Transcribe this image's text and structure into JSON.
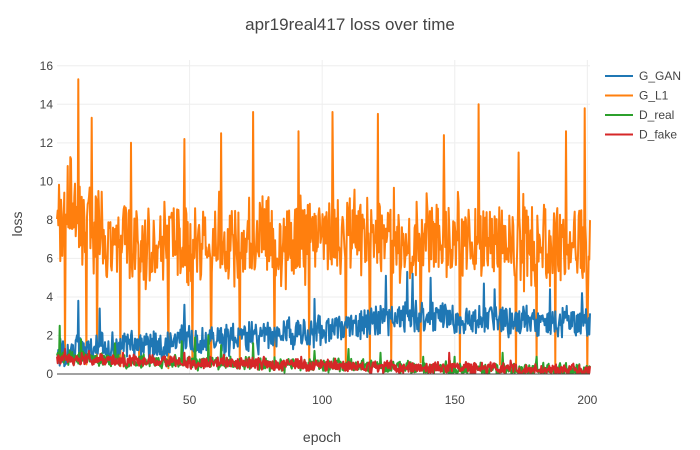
{
  "chart_data": {
    "type": "line",
    "title": "apr19real417 loss over time",
    "xlabel": "epoch",
    "ylabel": "loss",
    "xlim": [
      0,
      201
    ],
    "ylim": [
      0,
      16.3
    ],
    "xticks": [
      50,
      100,
      150,
      200
    ],
    "yticks": [
      0,
      2,
      4,
      6,
      8,
      10,
      12,
      14,
      16
    ],
    "grid": true,
    "legend_position": "top-right",
    "x": {
      "start": 0,
      "end": 201,
      "points": 800
    },
    "series": [
      {
        "name": "G_GAN",
        "color": "#1f77b4",
        "anchors": [
          [
            0,
            1.0
          ],
          [
            10,
            1.3
          ],
          [
            20,
            1.4
          ],
          [
            40,
            1.6
          ],
          [
            60,
            1.8
          ],
          [
            80,
            2.0
          ],
          [
            100,
            2.3
          ],
          [
            120,
            2.7
          ],
          [
            130,
            3.0
          ],
          [
            150,
            2.8
          ],
          [
            170,
            2.8
          ],
          [
            190,
            2.7
          ],
          [
            201,
            2.6
          ]
        ],
        "spread": 0.8,
        "spikes": [
          [
            8,
            3.8
          ],
          [
            16,
            3.4
          ],
          [
            48,
            3.6
          ],
          [
            97,
            3.9
          ],
          [
            124,
            5.1
          ],
          [
            132,
            5.3
          ],
          [
            134,
            5.2
          ],
          [
            141,
            5.0
          ],
          [
            161,
            4.7
          ],
          [
            165,
            4.4
          ],
          [
            186,
            4.4
          ],
          [
            198,
            4.2
          ]
        ]
      },
      {
        "name": "G_L1",
        "color": "#ff7f0e",
        "anchors": [
          [
            0,
            8.0
          ],
          [
            5,
            9.0
          ],
          [
            10,
            8.0
          ],
          [
            20,
            7.0
          ],
          [
            40,
            6.5
          ],
          [
            60,
            7.0
          ],
          [
            80,
            7.0
          ],
          [
            100,
            7.0
          ],
          [
            120,
            7.2
          ],
          [
            140,
            7.0
          ],
          [
            160,
            7.0
          ],
          [
            180,
            6.8
          ],
          [
            201,
            6.5
          ]
        ],
        "spread": 2.2,
        "spikes": [
          [
            4,
            10.8
          ],
          [
            8,
            15.3
          ],
          [
            13,
            13.3
          ],
          [
            28,
            12.0
          ],
          [
            48,
            12.2
          ],
          [
            62,
            12.5
          ],
          [
            74,
            13.6
          ],
          [
            91,
            12.6
          ],
          [
            104,
            13.6
          ],
          [
            121,
            13.5
          ],
          [
            146,
            12.4
          ],
          [
            159,
            14.0
          ],
          [
            174,
            11.5
          ],
          [
            192,
            12.6
          ],
          [
            199,
            13.8
          ]
        ],
        "drops": [
          [
            3,
            0.8
          ],
          [
            11,
            0.5
          ],
          [
            15,
            0.9
          ],
          [
            24,
            0.4
          ],
          [
            31,
            0.6
          ],
          [
            42,
            0.3
          ],
          [
            51,
            0.5
          ],
          [
            58,
            0.4
          ],
          [
            69,
            0.6
          ],
          [
            82,
            0.5
          ],
          [
            95,
            0.3
          ],
          [
            109,
            0.6
          ],
          [
            118,
            0.5
          ],
          [
            126,
            0.4
          ],
          [
            137,
            0.6
          ],
          [
            152,
            0.4
          ],
          [
            167,
            0.5
          ],
          [
            173,
            0.2
          ],
          [
            181,
            0.5
          ],
          [
            188,
            0.4
          ],
          [
            200,
            0.2
          ]
        ]
      },
      {
        "name": "D_real",
        "color": "#2ca02c",
        "anchors": [
          [
            0,
            0.9
          ],
          [
            20,
            0.7
          ],
          [
            50,
            0.6
          ],
          [
            80,
            0.5
          ],
          [
            100,
            0.45
          ],
          [
            130,
            0.35
          ],
          [
            160,
            0.25
          ],
          [
            180,
            0.22
          ],
          [
            201,
            0.2
          ]
        ],
        "spread": 0.35,
        "spikes": [
          [
            1,
            2.5
          ],
          [
            9,
            1.8
          ],
          [
            22,
            1.6
          ],
          [
            47,
            1.7
          ],
          [
            52,
            1.9
          ],
          [
            57,
            2.0
          ],
          [
            62,
            1.5
          ],
          [
            74,
            1.6
          ],
          [
            97,
            1.2
          ],
          [
            110,
            1.3
          ],
          [
            122,
            1.1
          ],
          [
            138,
            0.9
          ],
          [
            150,
            0.9
          ],
          [
            168,
            1.1
          ],
          [
            181,
            0.9
          ]
        ]
      },
      {
        "name": "D_fake",
        "color": "#d62728",
        "anchors": [
          [
            0,
            0.8
          ],
          [
            20,
            0.7
          ],
          [
            50,
            0.6
          ],
          [
            80,
            0.5
          ],
          [
            100,
            0.45
          ],
          [
            130,
            0.35
          ],
          [
            160,
            0.3
          ],
          [
            180,
            0.25
          ],
          [
            201,
            0.2
          ]
        ],
        "spread": 0.3,
        "spikes": [
          [
            3,
            1.3
          ],
          [
            12,
            1.2
          ],
          [
            25,
            1.1
          ],
          [
            48,
            1.1
          ],
          [
            63,
            1.0
          ],
          [
            78,
            0.9
          ],
          [
            92,
            0.9
          ],
          [
            105,
            0.8
          ],
          [
            148,
            1.1
          ],
          [
            171,
            0.7
          ]
        ]
      }
    ]
  }
}
